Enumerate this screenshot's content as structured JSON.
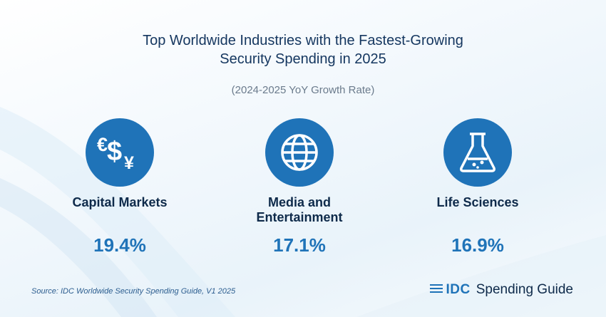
{
  "header": {
    "title_line1": "Top Worldwide Industries with the Fastest-Growing",
    "title_line2": "Security Spending in 2025",
    "subtitle": "(2024-2025 YoY Growth Rate)"
  },
  "chart_data": {
    "type": "table",
    "categories": [
      "Capital Markets",
      "Media and Entertainment",
      "Life Sciences"
    ],
    "values_display": [
      "19.4%",
      "17.1%",
      "16.9%"
    ],
    "values": [
      19.4,
      17.1,
      16.9
    ],
    "units": "%",
    "title": "Top Worldwide Industries with the Fastest-Growing Security Spending in 2025",
    "subtitle": "(2024-2025 YoY Growth Rate)"
  },
  "items": [
    {
      "label_line1": "Capital Markets",
      "label_line2": "",
      "value": "19.4%",
      "icon": "currency-exchange-icon"
    },
    {
      "label_line1": "Media and",
      "label_line2": "Entertainment",
      "value": "17.1%",
      "icon": "globe-icon"
    },
    {
      "label_line1": "Life Sciences",
      "label_line2": "",
      "value": "16.9%",
      "icon": "flask-icon"
    }
  ],
  "footer": {
    "source": "Source: IDC Worldwide Security Spending Guide, V1 2025",
    "brand_logo": "IDC",
    "brand_suffix": "Spending Guide"
  },
  "colors": {
    "accent": "#1f73b8",
    "title": "#14365f",
    "label": "#0e2a4a",
    "subtitle": "#6b7b8c"
  }
}
